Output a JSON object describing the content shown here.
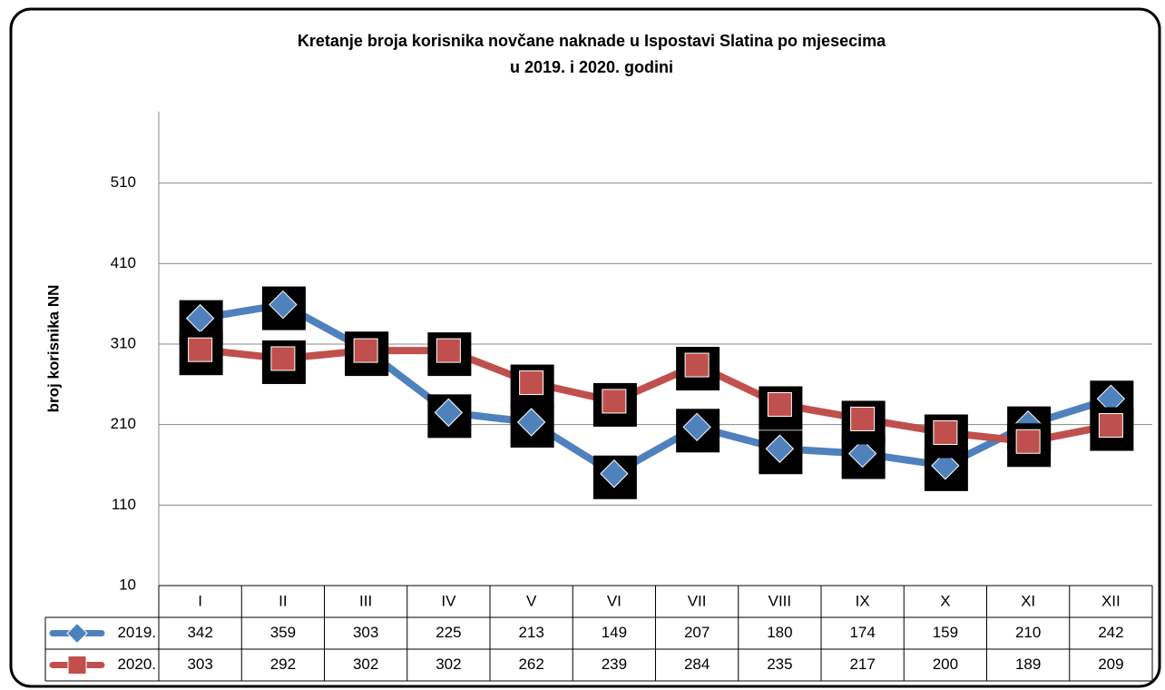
{
  "chart_data": {
    "type": "line",
    "title": [
      "Kretanje broja korisnika novčane naknade u Ispostavi Slatina po mjesecima",
      "u 2019. i 2020. godini"
    ],
    "y_label": "broj korisnika NN",
    "categories": [
      "I",
      "II",
      "III",
      "IV",
      "V",
      "VI",
      "VII",
      "VIII",
      "IX",
      "X",
      "XI",
      "XII"
    ],
    "series": [
      {
        "name": "2019.",
        "color": "#4f81bd",
        "marker": "diamond",
        "values": [
          342,
          359,
          303,
          225,
          213,
          149,
          207,
          180,
          174,
          159,
          210,
          242
        ]
      },
      {
        "name": "2020.",
        "color": "#c0504d",
        "marker": "square",
        "values": [
          303,
          292,
          302,
          302,
          262,
          239,
          284,
          235,
          217,
          200,
          189,
          209
        ]
      }
    ],
    "ylim": [
      10,
      610
    ],
    "yticks": [
      10,
      110,
      210,
      310,
      410,
      510
    ],
    "grid": true
  }
}
